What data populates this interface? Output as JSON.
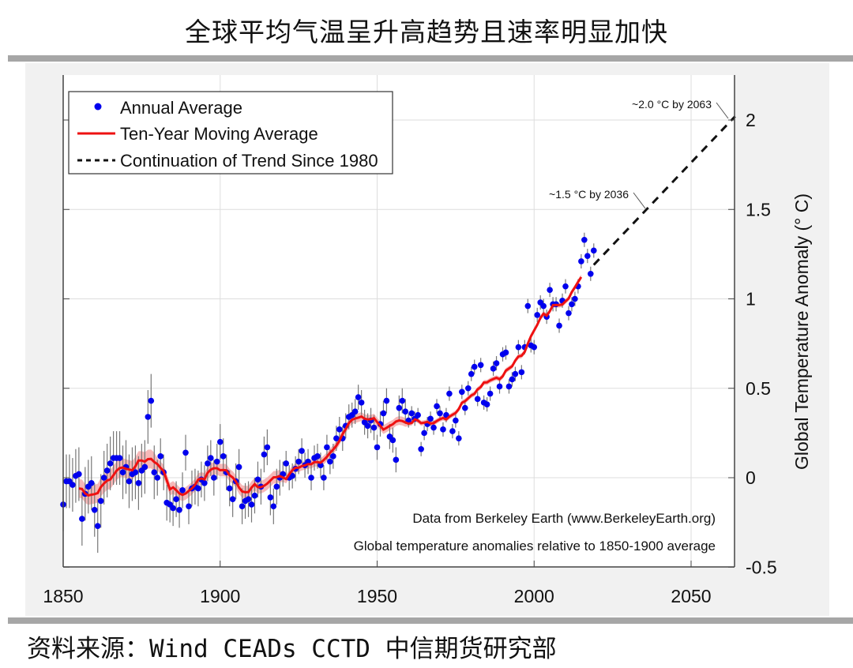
{
  "page": {
    "title": "全球平均气温呈升高趋势且速率明显加快",
    "source": "资料来源：Wind CEADs CCTD 中信期货研究部"
  },
  "chart_data": {
    "type": "scatter",
    "ylabel": "Global Temperature Anomaly (° C)",
    "xlabel": "",
    "xlim": [
      1850,
      2064
    ],
    "ylim": [
      -0.5,
      2.25
    ],
    "x_ticks": [
      "1850",
      "1900",
      "1950",
      "2000",
      "2050"
    ],
    "y_ticks": [
      "-0.5",
      "0",
      "0.5",
      "1",
      "1.5",
      "2"
    ],
    "y_axis_side": "right",
    "grid": true,
    "legend_position": "top-left",
    "legend": [
      "Annual Average",
      "Ten-Year Moving Average",
      "Continuation of Trend Since 1980"
    ],
    "colors": {
      "annual": "#0000ee",
      "moving_average": "#ee1111",
      "moving_band": "#f4a6a6",
      "trend": "#111111",
      "error_bar": "#777777"
    },
    "notes": [
      "Data from Berkeley Earth (www.BerkeleyEarth.org)",
      "Global temperature anomalies relative to 1850-1900 average"
    ],
    "annotations": [
      {
        "text": "~1.5 °C by 2036",
        "x": 2036,
        "y": 1.5
      },
      {
        "text": "~2.0 °C by 2063",
        "x": 2063,
        "y": 2.0
      }
    ],
    "annual": {
      "start_year": 1850,
      "values": [
        -0.15,
        -0.02,
        -0.02,
        -0.04,
        0.01,
        0.02,
        -0.23,
        -0.09,
        -0.05,
        -0.03,
        -0.18,
        -0.27,
        -0.13,
        0.0,
        0.04,
        0.08,
        0.11,
        0.11,
        0.11,
        0.03,
        0.06,
        -0.02,
        0.02,
        0.03,
        -0.03,
        0.04,
        0.06,
        0.34,
        0.43,
        0.03,
        0.0,
        0.12,
        0.03,
        -0.14,
        -0.15,
        -0.17,
        -0.12,
        -0.18,
        -0.07,
        0.14,
        -0.16,
        -0.06,
        -0.05,
        -0.06,
        -0.01,
        -0.03,
        0.08,
        0.11,
        0.0,
        0.09,
        0.2,
        0.12,
        0.03,
        -0.06,
        -0.12,
        -0.02,
        0.06,
        -0.16,
        -0.13,
        -0.12,
        -0.15,
        -0.1,
        -0.01,
        -0.05,
        0.13,
        0.17,
        -0.11,
        -0.16,
        -0.05,
        0.0,
        0.02,
        0.08,
        0.0,
        0.01,
        0.05,
        0.09,
        0.15,
        0.07,
        0.09,
        0.0,
        0.11,
        0.12,
        0.07,
        0.0,
        0.17,
        0.09,
        0.12,
        0.22,
        0.27,
        0.22,
        0.29,
        0.34,
        0.35,
        0.37,
        0.45,
        0.42,
        0.31,
        0.29,
        0.32,
        0.28,
        0.17,
        0.3,
        0.36,
        0.43,
        0.23,
        0.21,
        0.1,
        0.39,
        0.43,
        0.37,
        0.32,
        0.36,
        0.33,
        0.35,
        0.16,
        0.25,
        0.3,
        0.33,
        0.28,
        0.4,
        0.36,
        0.27,
        0.35,
        0.47,
        0.26,
        0.32,
        0.22,
        0.48,
        0.39,
        0.5,
        0.58,
        0.62,
        0.44,
        0.63,
        0.42,
        0.41,
        0.47,
        0.61,
        0.64,
        0.51,
        0.69,
        0.7,
        0.51,
        0.55,
        0.58,
        0.73,
        0.59,
        0.73,
        0.96,
        0.74,
        0.73,
        0.91,
        0.98,
        0.96,
        0.9,
        1.05,
        0.97,
        0.97,
        0.85,
        0.99,
        1.07,
        0.92,
        0.97,
        1.0,
        1.07,
        1.21,
        1.33,
        1.24,
        1.14,
        1.27
      ],
      "uncertainty_by_period": [
        {
          "from": 1850,
          "to": 1879,
          "value": 0.15
        },
        {
          "from": 1880,
          "to": 1919,
          "value": 0.1
        },
        {
          "from": 1920,
          "to": 1959,
          "value": 0.07
        },
        {
          "from": 1960,
          "to": 2019,
          "value": 0.04
        }
      ]
    },
    "trend": {
      "x": [
        2019,
        2064
      ],
      "y": [
        1.19,
        2.02
      ]
    }
  }
}
